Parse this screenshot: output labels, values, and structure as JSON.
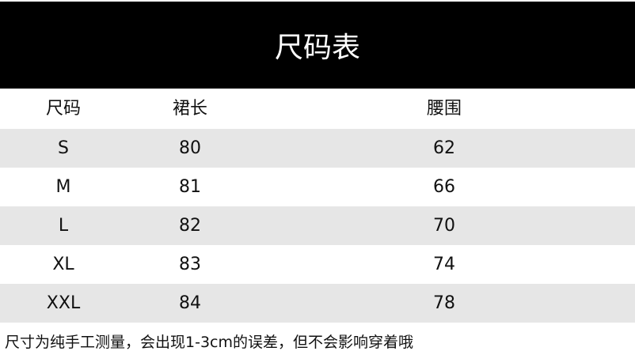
{
  "title": "尺码表",
  "columns": [
    "尺码",
    "裙长",
    "腰围"
  ],
  "rows": [
    [
      "S",
      "80",
      "62"
    ],
    [
      "M",
      "81",
      "66"
    ],
    [
      "L",
      "82",
      "70"
    ],
    [
      "XL",
      "83",
      "74"
    ],
    [
      "XXL",
      "84",
      "78"
    ]
  ],
  "note": "尺寸为纯手工测量，会出现1-3cm的误差，但不会影响穿着哦",
  "colors": {
    "banner": "#000000",
    "stripe": "#e6e6e6"
  }
}
